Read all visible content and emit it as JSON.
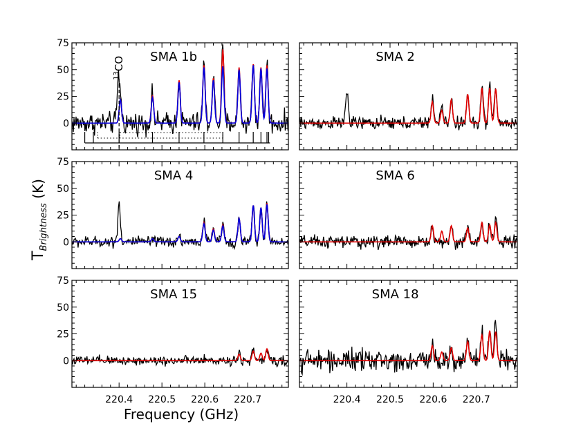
{
  "figure": {
    "xlabel": "Frequency (GHz)",
    "ylabel_main": "T",
    "ylabel_sub": "Brightness",
    "ylabel_unit": " (K)",
    "line_annotation_sup": "13",
    "line_annotation": "CO"
  },
  "colors": {
    "observed": "#000000",
    "model_red": "#e00000",
    "model_blue": "#0000e0"
  },
  "chart_data": [
    {
      "type": "line",
      "title": "SMA 1b",
      "xlim": [
        220.29,
        220.795
      ],
      "ylim": [
        -25,
        75
      ],
      "xticks": [
        220.4,
        220.5,
        220.6,
        220.7
      ],
      "yticks": [
        0,
        25,
        50,
        75
      ],
      "show_xtick_labels": false,
      "show_ytick_labels": true,
      "noise": 5,
      "lines": [
        [
          220.398,
          37
        ],
        [
          220.403,
          24
        ],
        [
          220.478,
          26
        ],
        [
          220.54,
          41
        ],
        [
          220.598,
          57
        ],
        [
          220.62,
          44
        ],
        [
          220.642,
          70
        ],
        [
          220.68,
          53
        ],
        [
          220.713,
          56
        ],
        [
          220.731,
          52
        ],
        [
          220.745,
          56
        ]
      ],
      "series": [
        {
          "color": "#e00000",
          "peaks": [
            [
              220.403,
              22
            ],
            [
              220.478,
              26
            ],
            [
              220.54,
              40
            ],
            [
              220.598,
              54
            ],
            [
              220.62,
              42
            ],
            [
              220.642,
              69
            ],
            [
              220.68,
              52
            ],
            [
              220.713,
              55
            ],
            [
              220.731,
              52
            ],
            [
              220.745,
              54
            ]
          ]
        },
        {
          "color": "#0000e0",
          "peaks": [
            [
              220.403,
              22
            ],
            [
              220.478,
              24
            ],
            [
              220.54,
              38
            ],
            [
              220.598,
              52
            ],
            [
              220.62,
              40
            ],
            [
              220.642,
              53
            ],
            [
              220.68,
              50
            ],
            [
              220.713,
              54
            ],
            [
              220.731,
              51
            ],
            [
              220.745,
              51
            ]
          ]
        }
      ],
      "show_line_markers": true
    },
    {
      "type": "line",
      "title": "SMA 2",
      "xlim": [
        220.29,
        220.795
      ],
      "ylim": [
        -25,
        75
      ],
      "xticks": [
        220.4,
        220.5,
        220.6,
        220.7
      ],
      "yticks": [
        0,
        25,
        50,
        75
      ],
      "show_xtick_labels": false,
      "show_ytick_labels": false,
      "noise": 3,
      "lines": [
        [
          220.4,
          32
        ],
        [
          220.598,
          26
        ],
        [
          220.62,
          17
        ],
        [
          220.642,
          22
        ],
        [
          220.68,
          25
        ],
        [
          220.713,
          35
        ],
        [
          220.731,
          36
        ],
        [
          220.745,
          33
        ]
      ],
      "series": [
        {
          "color": "#e00000",
          "peaks": [
            [
              220.598,
              20
            ],
            [
              220.62,
              12
            ],
            [
              220.642,
              22
            ],
            [
              220.68,
              27
            ],
            [
              220.713,
              33
            ],
            [
              220.731,
              33
            ],
            [
              220.745,
              32
            ]
          ]
        }
      ],
      "show_line_markers": false
    },
    {
      "type": "line",
      "title": "SMA 4",
      "xlim": [
        220.29,
        220.795
      ],
      "ylim": [
        -25,
        75
      ],
      "xticks": [
        220.4,
        220.5,
        220.6,
        220.7
      ],
      "yticks": [
        0,
        25,
        50,
        75
      ],
      "show_xtick_labels": false,
      "show_ytick_labels": true,
      "noise": 2.5,
      "lines": [
        [
          220.4,
          38
        ],
        [
          220.54,
          6
        ],
        [
          220.598,
          20
        ],
        [
          220.62,
          13
        ],
        [
          220.642,
          17
        ],
        [
          220.68,
          20
        ],
        [
          220.713,
          34
        ],
        [
          220.731,
          30
        ],
        [
          220.745,
          37
        ]
      ],
      "series": [
        {
          "color": "#e00000",
          "peaks": [
            [
              220.403,
              3
            ],
            [
              220.478,
              3
            ],
            [
              220.54,
              5
            ],
            [
              220.598,
              18
            ],
            [
              220.62,
              12
            ],
            [
              220.642,
              16
            ],
            [
              220.68,
              22
            ],
            [
              220.713,
              34
            ],
            [
              220.731,
              32
            ],
            [
              220.745,
              36
            ]
          ]
        },
        {
          "color": "#0000e0",
          "peaks": [
            [
              220.403,
              3
            ],
            [
              220.478,
              3
            ],
            [
              220.54,
              5
            ],
            [
              220.598,
              17
            ],
            [
              220.62,
              11
            ],
            [
              220.642,
              15
            ],
            [
              220.68,
              22
            ],
            [
              220.713,
              34
            ],
            [
              220.731,
              32
            ],
            [
              220.745,
              35
            ]
          ]
        }
      ],
      "show_line_markers": false
    },
    {
      "type": "line",
      "title": "SMA 6",
      "xlim": [
        220.29,
        220.795
      ],
      "ylim": [
        -25,
        75
      ],
      "xticks": [
        220.4,
        220.5,
        220.6,
        220.7
      ],
      "yticks": [
        0,
        25,
        50,
        75
      ],
      "show_xtick_labels": false,
      "show_ytick_labels": false,
      "noise": 3,
      "lines": [
        [
          220.598,
          13
        ],
        [
          220.642,
          15
        ],
        [
          220.68,
          14
        ],
        [
          220.713,
          16
        ],
        [
          220.731,
          18
        ],
        [
          220.745,
          20
        ]
      ],
      "series": [
        {
          "color": "#e00000",
          "peaks": [
            [
              220.598,
              15
            ],
            [
              220.62,
              10
            ],
            [
              220.642,
              15
            ],
            [
              220.68,
              13
            ],
            [
              220.713,
              18
            ],
            [
              220.731,
              16
            ],
            [
              220.745,
              18
            ]
          ]
        }
      ],
      "show_line_markers": false
    },
    {
      "type": "line",
      "title": "SMA 15",
      "xlim": [
        220.29,
        220.795
      ],
      "ylim": [
        -25,
        75
      ],
      "xticks": [
        220.4,
        220.5,
        220.6,
        220.7
      ],
      "yticks": [
        0,
        25,
        50,
        75
      ],
      "show_xtick_labels": true,
      "show_ytick_labels": true,
      "noise": 2.2,
      "lines": [
        [
          220.68,
          8
        ],
        [
          220.713,
          10
        ],
        [
          220.745,
          10
        ]
      ],
      "series": [
        {
          "color": "#e00000",
          "peaks": [
            [
              220.68,
              6
            ],
            [
              220.713,
              9
            ],
            [
              220.731,
              7
            ],
            [
              220.745,
              11
            ]
          ]
        }
      ],
      "show_line_markers": false
    },
    {
      "type": "line",
      "title": "SMA 18",
      "xlim": [
        220.29,
        220.795
      ],
      "ylim": [
        -25,
        75
      ],
      "xticks": [
        220.4,
        220.5,
        220.6,
        220.7
      ],
      "yticks": [
        0,
        25,
        50,
        75
      ],
      "show_xtick_labels": true,
      "show_ytick_labels": false,
      "noise": 5,
      "lines": [
        [
          220.598,
          14
        ],
        [
          220.642,
          12
        ],
        [
          220.68,
          20
        ],
        [
          220.713,
          28
        ],
        [
          220.731,
          30
        ],
        [
          220.745,
          37
        ]
      ],
      "series": [
        {
          "color": "#e00000",
          "peaks": [
            [
              220.598,
              14
            ],
            [
              220.62,
              8
            ],
            [
              220.642,
              12
            ],
            [
              220.68,
              18
            ],
            [
              220.713,
              24
            ],
            [
              220.731,
              28
            ],
            [
              220.745,
              27
            ]
          ]
        }
      ],
      "show_line_markers": false
    }
  ]
}
